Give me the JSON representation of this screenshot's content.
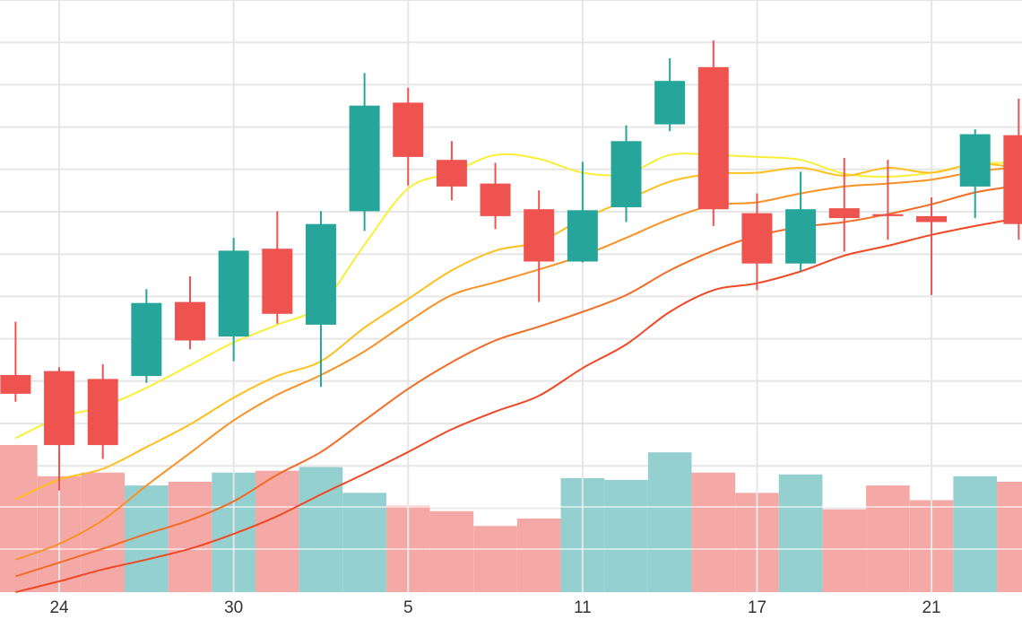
{
  "chart_data": {
    "type": "candlestick",
    "x_tick_labels": [
      "24",
      "30",
      "5",
      "11",
      "17",
      "21"
    ],
    "candles": [
      {
        "open": 65.5,
        "close": 63.6,
        "high": 70.9,
        "low": 62.8
      },
      {
        "open": 65.9,
        "close": 58.4,
        "high": 66.3,
        "low": 53.8
      },
      {
        "open": 65.1,
        "close": 58.4,
        "high": 66.6,
        "low": 57.0
      },
      {
        "open": 65.4,
        "close": 72.8,
        "high": 74.2,
        "low": 64.7
      },
      {
        "open": 72.9,
        "close": 69.0,
        "high": 75.5,
        "low": 68.1
      },
      {
        "open": 69.4,
        "close": 78.1,
        "high": 79.4,
        "low": 66.9
      },
      {
        "open": 78.3,
        "close": 71.7,
        "high": 82.1,
        "low": 70.7
      },
      {
        "open": 70.6,
        "close": 80.8,
        "high": 82.1,
        "low": 64.3
      },
      {
        "open": 82.1,
        "close": 92.8,
        "high": 96.1,
        "low": 80.1
      },
      {
        "open": 93.1,
        "close": 87.6,
        "high": 94.6,
        "low": 84.7
      },
      {
        "open": 87.3,
        "close": 84.6,
        "high": 89.2,
        "low": 83.2
      },
      {
        "open": 84.9,
        "close": 81.6,
        "high": 87.0,
        "low": 80.3
      },
      {
        "open": 82.3,
        "close": 77.0,
        "high": 84.2,
        "low": 72.9
      },
      {
        "open": 77.0,
        "close": 82.2,
        "high": 87.1,
        "low": 76.9
      },
      {
        "open": 82.5,
        "close": 89.2,
        "high": 90.8,
        "low": 81.0
      },
      {
        "open": 90.9,
        "close": 95.3,
        "high": 97.6,
        "low": 90.2
      },
      {
        "open": 96.7,
        "close": 82.3,
        "high": 99.4,
        "low": 80.6
      },
      {
        "open": 81.9,
        "close": 76.8,
        "high": 83.9,
        "low": 74.1
      },
      {
        "open": 76.8,
        "close": 82.3,
        "high": 86.1,
        "low": 76.0
      },
      {
        "open": 82.4,
        "close": 81.4,
        "high": 87.5,
        "low": 78.0
      },
      {
        "open": 81.8,
        "close": 81.6,
        "high": 87.3,
        "low": 79.2
      },
      {
        "open": 81.6,
        "close": 81.0,
        "high": 83.5,
        "low": 73.6
      },
      {
        "open": 84.6,
        "close": 89.9,
        "high": 90.4,
        "low": 81.4
      },
      {
        "open": 89.8,
        "close": 80.8,
        "high": 93.5,
        "low": 79.2
      }
    ],
    "volume": [
      0.8,
      0.63,
      0.65,
      0.58,
      0.6,
      0.65,
      0.66,
      0.68,
      0.54,
      0.47,
      0.44,
      0.36,
      0.4,
      0.62,
      0.61,
      0.76,
      0.65,
      0.54,
      0.64,
      0.45,
      0.58,
      0.5,
      0.63,
      0.6
    ],
    "moving_averages": [
      {
        "color": "#f9ef36",
        "values": [
          59.1,
          61.2,
          62.3,
          64.2,
          66.5,
          68.8,
          70.6,
          72.6,
          78.7,
          84.4,
          86.0,
          87.8,
          87.4,
          86.0,
          85.9,
          87.8,
          87.8,
          87.6,
          87.3,
          85.9,
          85.6,
          86.0,
          86.9,
          87.0
        ]
      },
      {
        "color": "#fdc01f",
        "values": [
          52.9,
          54.9,
          56.0,
          58.2,
          60.5,
          63.2,
          65.4,
          66.9,
          70.3,
          73.2,
          76.1,
          78.1,
          79.0,
          81.3,
          83.2,
          85.1,
          85.9,
          86.0,
          86.5,
          85.7,
          86.5,
          86.0,
          86.9,
          86.5
        ]
      },
      {
        "color": "#f99226",
        "values": [
          46.8,
          48.4,
          50.8,
          54.3,
          57.6,
          60.9,
          63.5,
          65.5,
          67.9,
          70.9,
          73.6,
          74.9,
          76.2,
          77.6,
          79.4,
          81.3,
          82.7,
          83.0,
          83.9,
          84.6,
          84.9,
          85.3,
          86.1,
          86.6
        ]
      },
      {
        "color": "#f36c25",
        "values": [
          45.1,
          46.5,
          47.9,
          49.4,
          50.8,
          52.7,
          55.4,
          57.7,
          60.9,
          64.1,
          66.8,
          69.0,
          70.4,
          71.9,
          73.6,
          76.1,
          78.1,
          79.6,
          80.5,
          81.0,
          81.8,
          82.8,
          84.0,
          84.7
        ]
      },
      {
        "color": "#f04824",
        "values": [
          43.5,
          44.6,
          45.8,
          46.8,
          47.9,
          49.4,
          51.2,
          53.4,
          55.5,
          57.7,
          60.0,
          61.8,
          63.4,
          66.2,
          68.6,
          71.9,
          74.1,
          74.8,
          76.0,
          77.6,
          78.6,
          79.7,
          80.6,
          81.4
        ]
      }
    ],
    "colors": {
      "up": "#26a69a",
      "down": "#ef5350",
      "volume_up": "#93d0cf",
      "volume_down": "#f5a9a7",
      "grid": "#e6e6e6",
      "background": "#ffffff"
    },
    "grid": true
  }
}
